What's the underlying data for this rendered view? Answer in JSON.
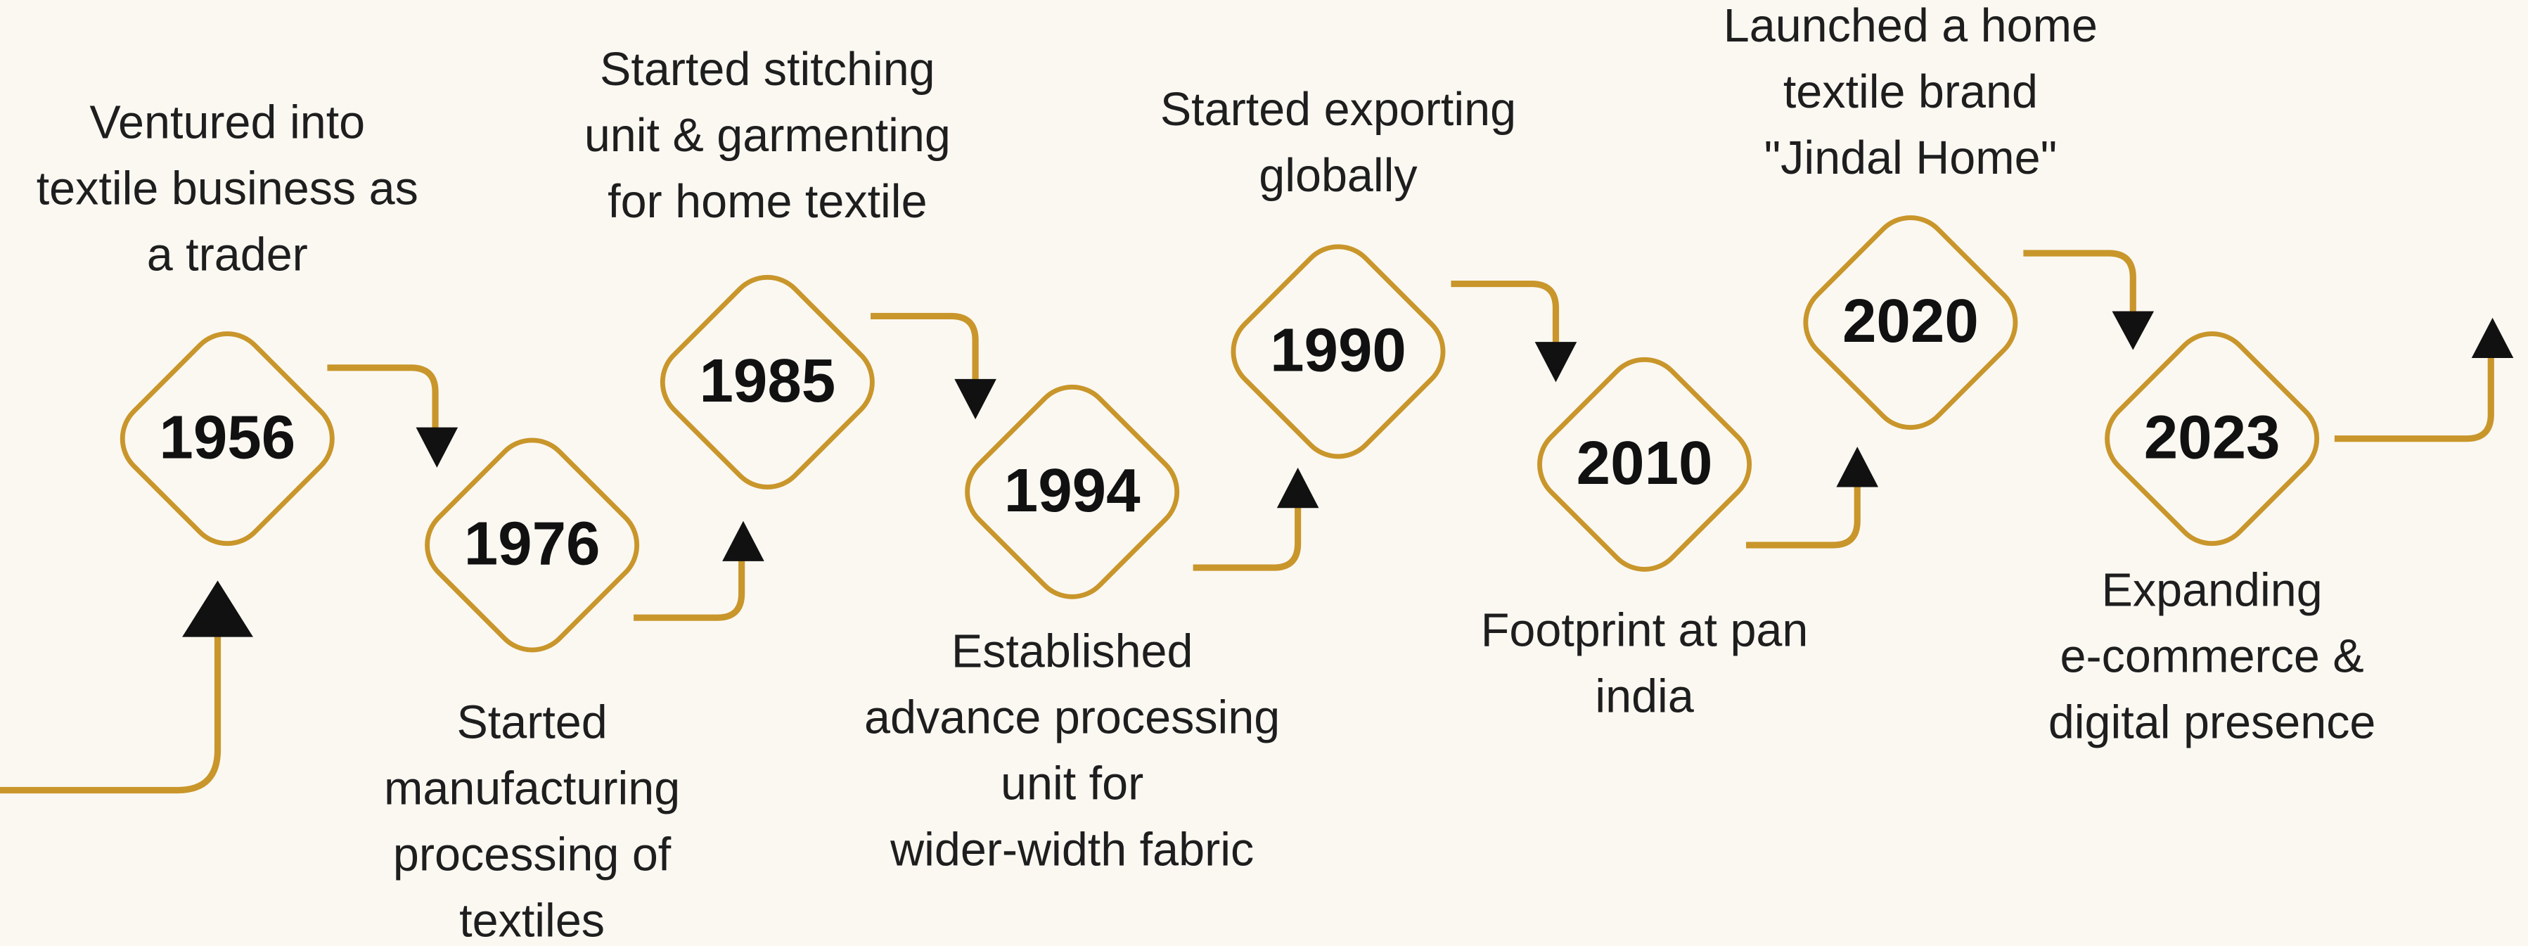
{
  "timeline": [
    {
      "year": "1956",
      "description": [
        "Ventured into",
        "textile business as",
        "a trader"
      ]
    },
    {
      "year": "1976",
      "description": [
        "Started",
        "manufacturing",
        "processing of",
        "textiles"
      ]
    },
    {
      "year": "1985",
      "description": [
        "Started stitching",
        "unit & garmenting",
        "for home textile"
      ]
    },
    {
      "year": "1994",
      "description": [
        "Established",
        "advance processing",
        "unit for",
        "wider-width fabric"
      ]
    },
    {
      "year": "1990",
      "description": [
        "Started exporting",
        "globally"
      ]
    },
    {
      "year": "2010",
      "description": [
        "Footprint at pan",
        "india"
      ]
    },
    {
      "year": "2020",
      "description": [
        "Launched a home",
        "textile brand",
        "\"Jindal Home\""
      ]
    },
    {
      "year": "2023",
      "description": [
        "Expanding",
        "e-commerce &",
        "digital presence"
      ]
    }
  ]
}
